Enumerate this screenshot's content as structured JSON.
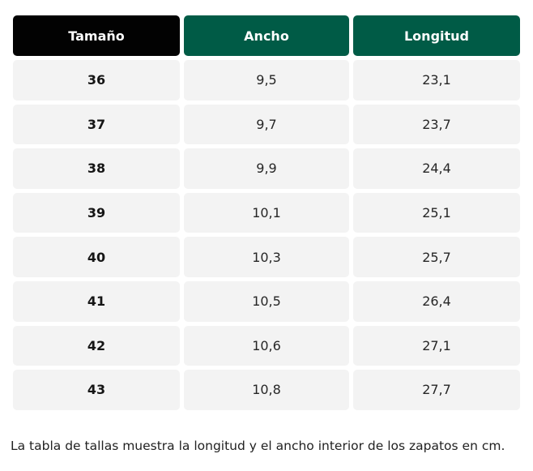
{
  "table": {
    "headers": [
      "Tamaño",
      "Ancho",
      "Longitud"
    ],
    "rows": [
      [
        "36",
        "9,5",
        "23,1"
      ],
      [
        "37",
        "9,7",
        "23,7"
      ],
      [
        "38",
        "9,9",
        "24,4"
      ],
      [
        "39",
        "10,1",
        "25,1"
      ],
      [
        "40",
        "10,3",
        "25,7"
      ],
      [
        "41",
        "10,5",
        "26,4"
      ],
      [
        "42",
        "10,6",
        "27,1"
      ],
      [
        "43",
        "10,8",
        "27,7"
      ]
    ],
    "colors": {
      "size_header_bg": "#020202",
      "header_bg": "#005b46",
      "cell_bg": "#f3f3f3"
    }
  },
  "caption": "La tabla de tallas muestra la longitud y el ancho interior de los zapatos en cm."
}
